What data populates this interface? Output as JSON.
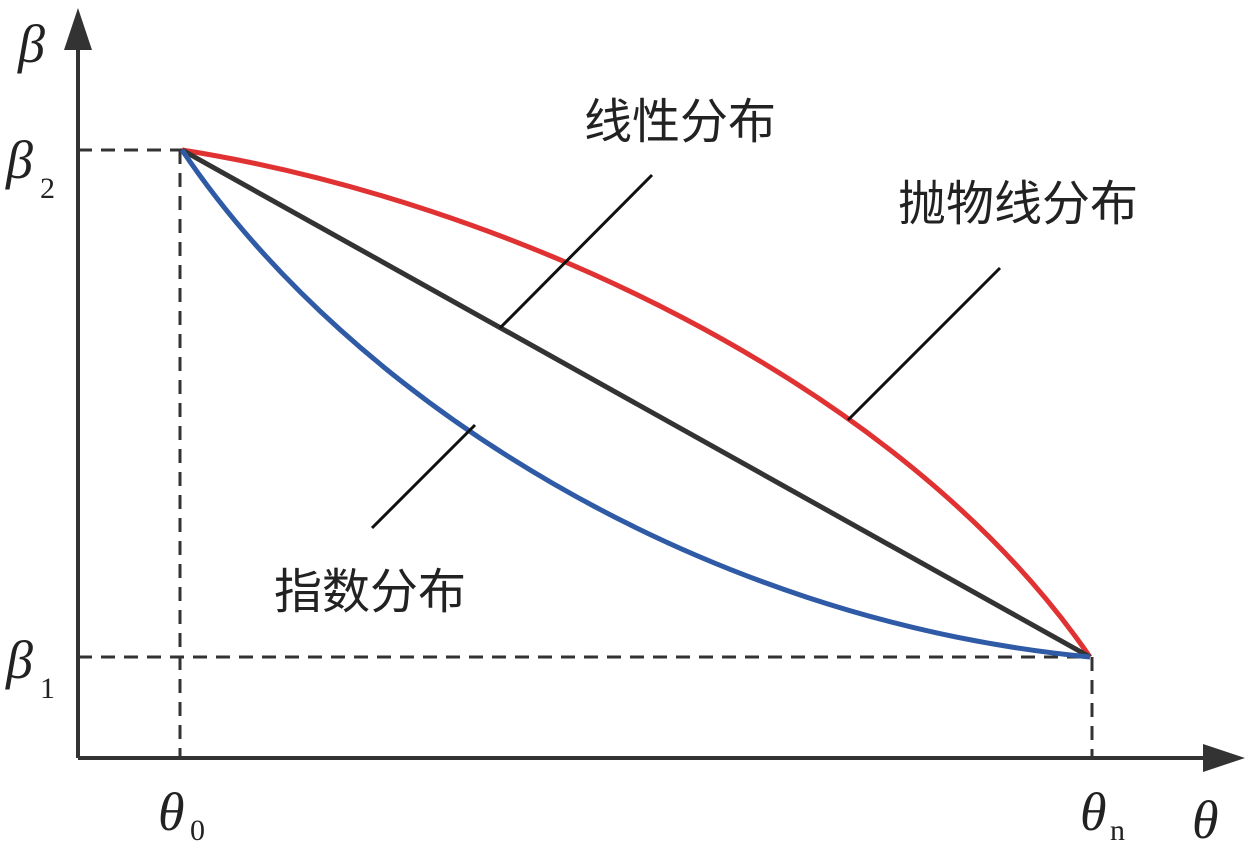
{
  "axes": {
    "y_label": "β",
    "x_label": "θ"
  },
  "ticks": {
    "beta2": {
      "symbol": "β",
      "subscript": "2"
    },
    "beta1": {
      "symbol": "β",
      "subscript": "1"
    },
    "theta0": {
      "symbol": "θ",
      "subscript": "0"
    },
    "thetan": {
      "symbol": "θ",
      "subscript": "n"
    }
  },
  "curves": {
    "linear": "线性分布",
    "parabolic": "抛物线分布",
    "exponential": "指数分布"
  }
}
